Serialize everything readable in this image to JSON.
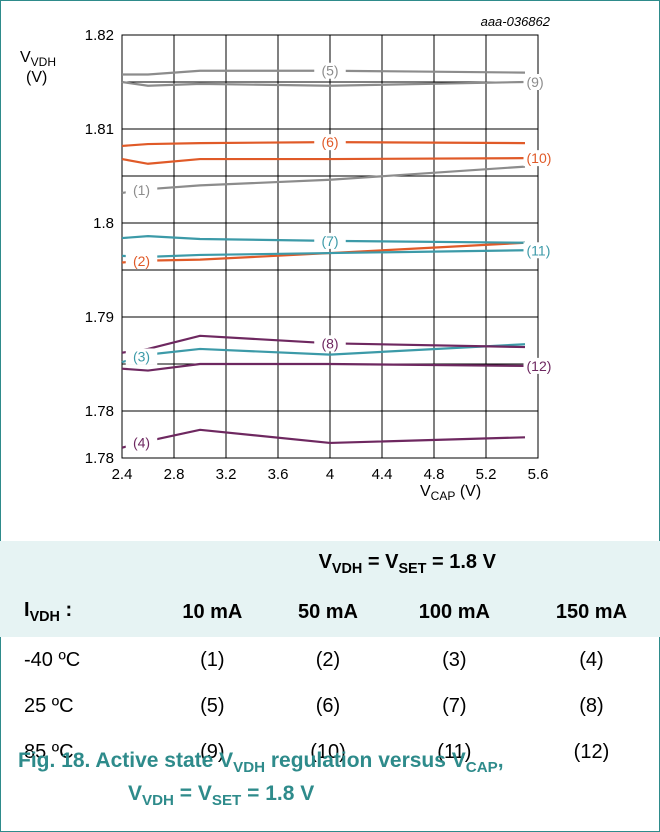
{
  "chart_data": {
    "type": "line",
    "doc_id": "aaa-036862",
    "ylabel": {
      "main": "V",
      "sub": "VDH",
      "unit": "(V)"
    },
    "xlabel": {
      "main": "V",
      "sub": "CAP",
      "unit": "(V)"
    },
    "xlim": [
      2.4,
      5.6
    ],
    "ylim": [
      1.775,
      1.82
    ],
    "x_ticks": [
      "2.4",
      "2.8",
      "3.2",
      "3.6",
      "4",
      "4.4",
      "4.8",
      "5.2",
      "5.6"
    ],
    "y_ticks": [
      "1.78",
      "1.78",
      "1.79",
      "1.8",
      "1.81",
      "1.82"
    ],
    "grid": true,
    "series": [
      {
        "name": "(1)",
        "color": "#8c8c8c",
        "x": [
          2.4,
          2.6,
          3.0,
          4.0,
          5.5
        ],
        "y": [
          1.8032,
          1.8036,
          1.804,
          1.8046,
          1.806
        ]
      },
      {
        "name": "(2)",
        "color": "#e05a28",
        "x": [
          2.4,
          2.6,
          3.0,
          4.0,
          5.5
        ],
        "y": [
          1.7958,
          1.796,
          1.7961,
          1.7968,
          1.7979
        ]
      },
      {
        "name": "(3)",
        "color": "#3c9aa8",
        "x": [
          2.4,
          2.6,
          3.0,
          4.0,
          5.5
        ],
        "y": [
          1.7852,
          1.786,
          1.7866,
          1.786,
          1.7871
        ]
      },
      {
        "name": "(4)",
        "color": "#6e2860",
        "x": [
          2.4,
          2.6,
          3.0,
          4.0,
          5.5
        ],
        "y": [
          1.7761,
          1.7768,
          1.778,
          1.7766,
          1.7772
        ]
      },
      {
        "name": "(5)",
        "color": "#8c8c8c",
        "x": [
          2.4,
          2.6,
          3.0,
          4.0,
          5.5
        ],
        "y": [
          1.8158,
          1.8158,
          1.8162,
          1.8162,
          1.816
        ]
      },
      {
        "name": "(6)",
        "color": "#e05a28",
        "x": [
          2.4,
          2.6,
          3.0,
          4.0,
          5.5
        ],
        "y": [
          1.8082,
          1.8084,
          1.8085,
          1.8086,
          1.8085
        ]
      },
      {
        "name": "(7)",
        "color": "#3c9aa8",
        "x": [
          2.4,
          2.6,
          3.0,
          4.0,
          5.5
        ],
        "y": [
          1.7984,
          1.7986,
          1.7983,
          1.7981,
          1.7979
        ]
      },
      {
        "name": "(8)",
        "color": "#6e2860",
        "x": [
          2.4,
          2.6,
          3.0,
          4.0,
          5.5
        ],
        "y": [
          1.7862,
          1.7866,
          1.788,
          1.7872,
          1.7868
        ]
      },
      {
        "name": "(9)",
        "color": "#8c8c8c",
        "x": [
          2.4,
          2.6,
          3.0,
          4.0,
          5.5
        ],
        "y": [
          1.815,
          1.8146,
          1.8148,
          1.8146,
          1.815
        ]
      },
      {
        "name": "(10)",
        "color": "#e05a28",
        "x": [
          2.4,
          2.6,
          3.0,
          4.0,
          5.5
        ],
        "y": [
          1.8068,
          1.8063,
          1.8068,
          1.8068,
          1.8069
        ]
      },
      {
        "name": "(11)",
        "color": "#3c9aa8",
        "x": [
          2.4,
          2.6,
          3.0,
          4.0,
          5.5
        ],
        "y": [
          1.7965,
          1.7964,
          1.7966,
          1.7968,
          1.7971
        ]
      },
      {
        "name": "(12)",
        "color": "#6e2860",
        "x": [
          2.4,
          2.6,
          3.0,
          4.0,
          5.5
        ],
        "y": [
          1.7845,
          1.7843,
          1.785,
          1.785,
          1.7848
        ]
      }
    ]
  },
  "legend_table": {
    "header": {
      "main": "V",
      "sub1": "VDH",
      "mid": " = V",
      "sub2": "SET",
      "tail": " = 1.8 V"
    },
    "row_header": {
      "main": "I",
      "sub": "VDH",
      "tail": " :"
    },
    "columns": [
      "10 mA",
      "50 mA",
      "100 mA",
      "150 mA"
    ],
    "rows": [
      {
        "temp": "-40 ºC",
        "cells": [
          "(1)",
          "(2)",
          "(3)",
          "(4)"
        ]
      },
      {
        "temp": "25 ºC",
        "cells": [
          "(5)",
          "(6)",
          "(7)",
          "(8)"
        ]
      },
      {
        "temp": "85 ºC",
        "cells": [
          "(9)",
          "(10)",
          "(11)",
          "(12)"
        ]
      }
    ]
  },
  "caption": {
    "line1_a": "Fig. 18.  Active state V",
    "line1_sub1": "VDH",
    "line1_b": " regulation versus V",
    "line1_sub2": "CAP",
    "line1_c": ",",
    "line2_a": "V",
    "line2_sub1": "VDH",
    "line2_b": " = V",
    "line2_sub2": "SET",
    "line2_c": " = 1.8 V"
  }
}
